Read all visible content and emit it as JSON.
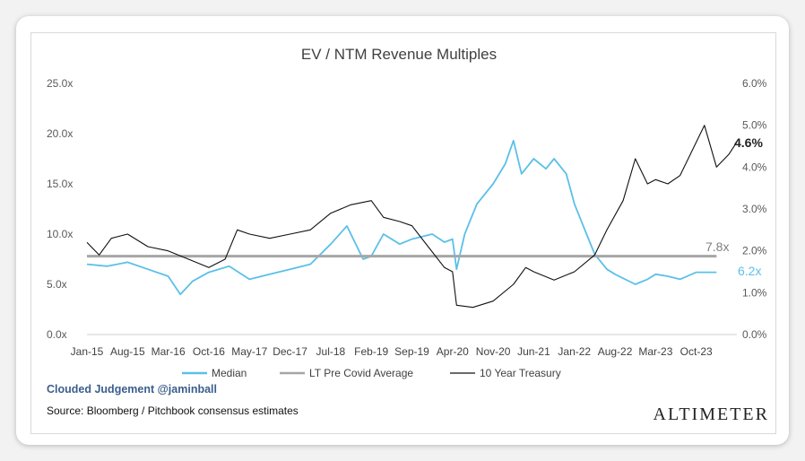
{
  "credit": "Clouded Judgement @jaminball",
  "source": "Source: Bloomberg / Pitchbook consensus estimates",
  "logo_text": "ALTIMETER",
  "chart_data": {
    "type": "line",
    "title": "EV / NTM Revenue Multiples",
    "x_tick_labels": [
      "Jan-15",
      "Aug-15",
      "Mar-16",
      "Oct-16",
      "May-17",
      "Dec-17",
      "Jul-18",
      "Feb-19",
      "Sep-19",
      "Apr-20",
      "Nov-20",
      "Jun-21",
      "Jan-22",
      "Aug-22",
      "Mar-23",
      "Oct-23"
    ],
    "y_left": {
      "min": 0,
      "max": 25,
      "ticks": [
        "0.0x",
        "5.0x",
        "10.0x",
        "15.0x",
        "20.0x",
        "25.0x"
      ]
    },
    "y_right": {
      "min": 0,
      "max": 6,
      "ticks": [
        "0.0%",
        "1.0%",
        "2.0%",
        "3.0%",
        "4.0%",
        "5.0%",
        "6.0%"
      ]
    },
    "series": [
      {
        "name": "Median",
        "axis": "left",
        "color": "#5bc0e8",
        "points": [
          [
            0,
            7
          ],
          [
            0.5,
            6.8
          ],
          [
            1,
            7.2
          ],
          [
            1.5,
            6.5
          ],
          [
            2,
            5.8
          ],
          [
            2.3,
            4
          ],
          [
            2.6,
            5.3
          ],
          [
            3,
            6.2
          ],
          [
            3.5,
            6.8
          ],
          [
            4,
            5.5
          ],
          [
            4.5,
            6
          ],
          [
            5,
            6.5
          ],
          [
            5.5,
            7
          ],
          [
            6,
            9
          ],
          [
            6.4,
            10.8
          ],
          [
            6.8,
            7.5
          ],
          [
            7,
            7.8
          ],
          [
            7.3,
            10
          ],
          [
            7.7,
            9
          ],
          [
            8,
            9.5
          ],
          [
            8.5,
            10
          ],
          [
            8.8,
            9.2
          ],
          [
            9,
            9.5
          ],
          [
            9.1,
            6.5
          ],
          [
            9.3,
            10
          ],
          [
            9.6,
            13
          ],
          [
            10,
            15
          ],
          [
            10.3,
            17
          ],
          [
            10.5,
            19.3
          ],
          [
            10.7,
            16
          ],
          [
            11,
            17.5
          ],
          [
            11.3,
            16.5
          ],
          [
            11.5,
            17.5
          ],
          [
            11.8,
            16
          ],
          [
            12,
            13
          ],
          [
            12.3,
            10
          ],
          [
            12.5,
            8
          ],
          [
            12.8,
            6.5
          ],
          [
            13,
            6
          ],
          [
            13.5,
            5
          ],
          [
            13.8,
            5.5
          ],
          [
            14,
            6
          ],
          [
            14.3,
            5.8
          ],
          [
            14.6,
            5.5
          ],
          [
            15,
            6.2
          ],
          [
            15.5,
            6.2
          ]
        ]
      },
      {
        "name": "LT Pre Covid Average",
        "axis": "left",
        "color": "#a6a6a6",
        "points": [
          [
            0,
            7.8
          ],
          [
            15.5,
            7.8
          ]
        ]
      },
      {
        "name": "10 Year Treasury",
        "axis": "right",
        "color": "#111111",
        "points": [
          [
            0,
            2.2
          ],
          [
            0.3,
            1.9
          ],
          [
            0.6,
            2.3
          ],
          [
            1,
            2.4
          ],
          [
            1.5,
            2.1
          ],
          [
            2,
            2.0
          ],
          [
            2.5,
            1.8
          ],
          [
            3,
            1.6
          ],
          [
            3.4,
            1.8
          ],
          [
            3.7,
            2.5
          ],
          [
            4,
            2.4
          ],
          [
            4.5,
            2.3
          ],
          [
            5,
            2.4
          ],
          [
            5.5,
            2.5
          ],
          [
            6,
            2.9
          ],
          [
            6.5,
            3.1
          ],
          [
            7,
            3.2
          ],
          [
            7.3,
            2.8
          ],
          [
            7.7,
            2.7
          ],
          [
            8,
            2.6
          ],
          [
            8.4,
            2.1
          ],
          [
            8.8,
            1.6
          ],
          [
            9,
            1.5
          ],
          [
            9.1,
            0.7
          ],
          [
            9.5,
            0.65
          ],
          [
            10,
            0.8
          ],
          [
            10.5,
            1.2
          ],
          [
            10.8,
            1.6
          ],
          [
            11,
            1.5
          ],
          [
            11.5,
            1.3
          ],
          [
            12,
            1.5
          ],
          [
            12.5,
            1.9
          ],
          [
            12.8,
            2.5
          ],
          [
            13.2,
            3.2
          ],
          [
            13.5,
            4.2
          ],
          [
            13.8,
            3.6
          ],
          [
            14,
            3.7
          ],
          [
            14.3,
            3.6
          ],
          [
            14.6,
            3.8
          ],
          [
            14.9,
            4.4
          ],
          [
            15.2,
            5.0
          ],
          [
            15.5,
            4.0
          ],
          [
            15.8,
            4.3
          ],
          [
            16,
            4.6
          ]
        ]
      }
    ],
    "end_labels": {
      "treasury": "4.6%",
      "average": "7.8x",
      "median": "6.2x"
    },
    "legend": {
      "position": "bottom",
      "items": [
        "Median",
        "LT Pre Covid Average",
        "10 Year Treasury"
      ]
    }
  }
}
